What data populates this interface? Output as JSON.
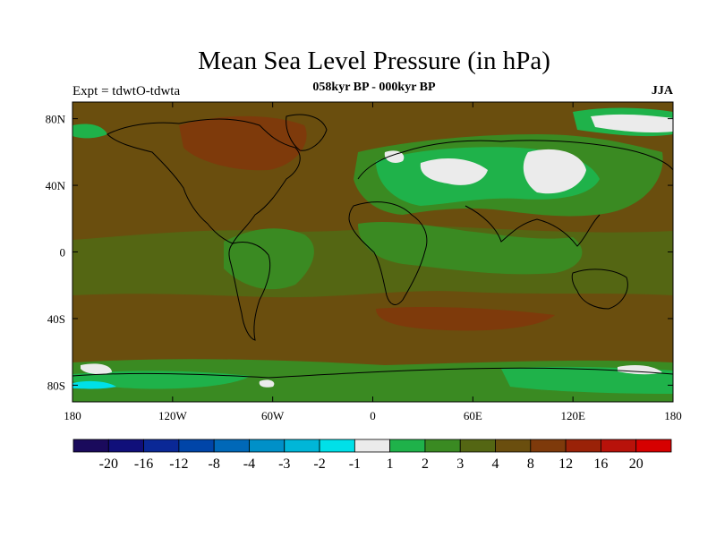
{
  "header": {
    "title": "Mean Sea Level Pressure (in hPa)",
    "subtitle": "058kyr BP - 000kyr BP",
    "left_label": "Expt = tdwtO-tdwta",
    "right_label": "JJA"
  },
  "map": {
    "lon_ticks": [
      "180",
      "120W",
      "60W",
      "0",
      "60E",
      "120E",
      "180"
    ],
    "lat_ticks": [
      "80N",
      "40N",
      "0",
      "40S",
      "80S"
    ]
  },
  "colorbar": {
    "colors": [
      "#1a0a5c",
      "#100f7a",
      "#0a2896",
      "#0045a8",
      "#0068b8",
      "#0090c8",
      "#00b6d8",
      "#00e0e8",
      "#ebebeb",
      "#1fb24a",
      "#3a8a22",
      "#546613",
      "#6a4e0e",
      "#7e3a0b",
      "#9a2208",
      "#b8120a",
      "#d60000"
    ],
    "labels": [
      "-20",
      "-16",
      "-12",
      "-8",
      "-4",
      "-3",
      "-2",
      "-1",
      "1",
      "2",
      "3",
      "4",
      "8",
      "12",
      "16",
      "20"
    ]
  }
}
